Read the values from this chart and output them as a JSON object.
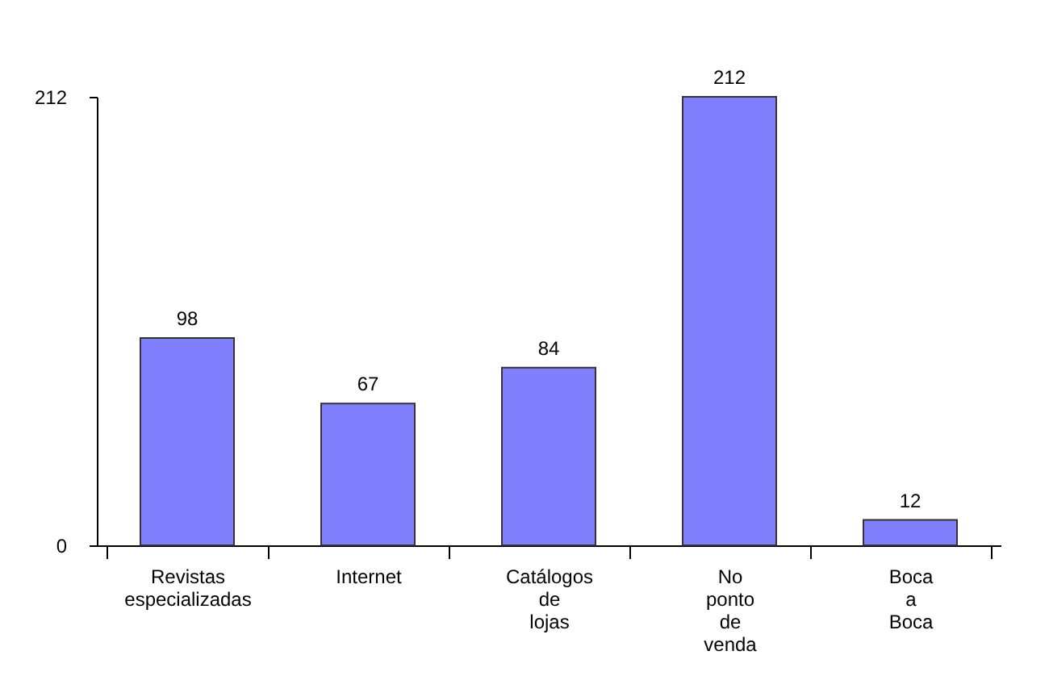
{
  "chart_data": {
    "type": "bar",
    "categories": [
      "Revistas especializadas",
      "Internet",
      "Catálogos de lojas",
      "No ponto de venda",
      "Boca a Boca"
    ],
    "values": [
      98,
      67,
      84,
      212,
      12
    ],
    "color": "#8080ff",
    "ylim": [
      0,
      212
    ],
    "yticks": [
      0,
      212
    ],
    "data_labels": true
  }
}
